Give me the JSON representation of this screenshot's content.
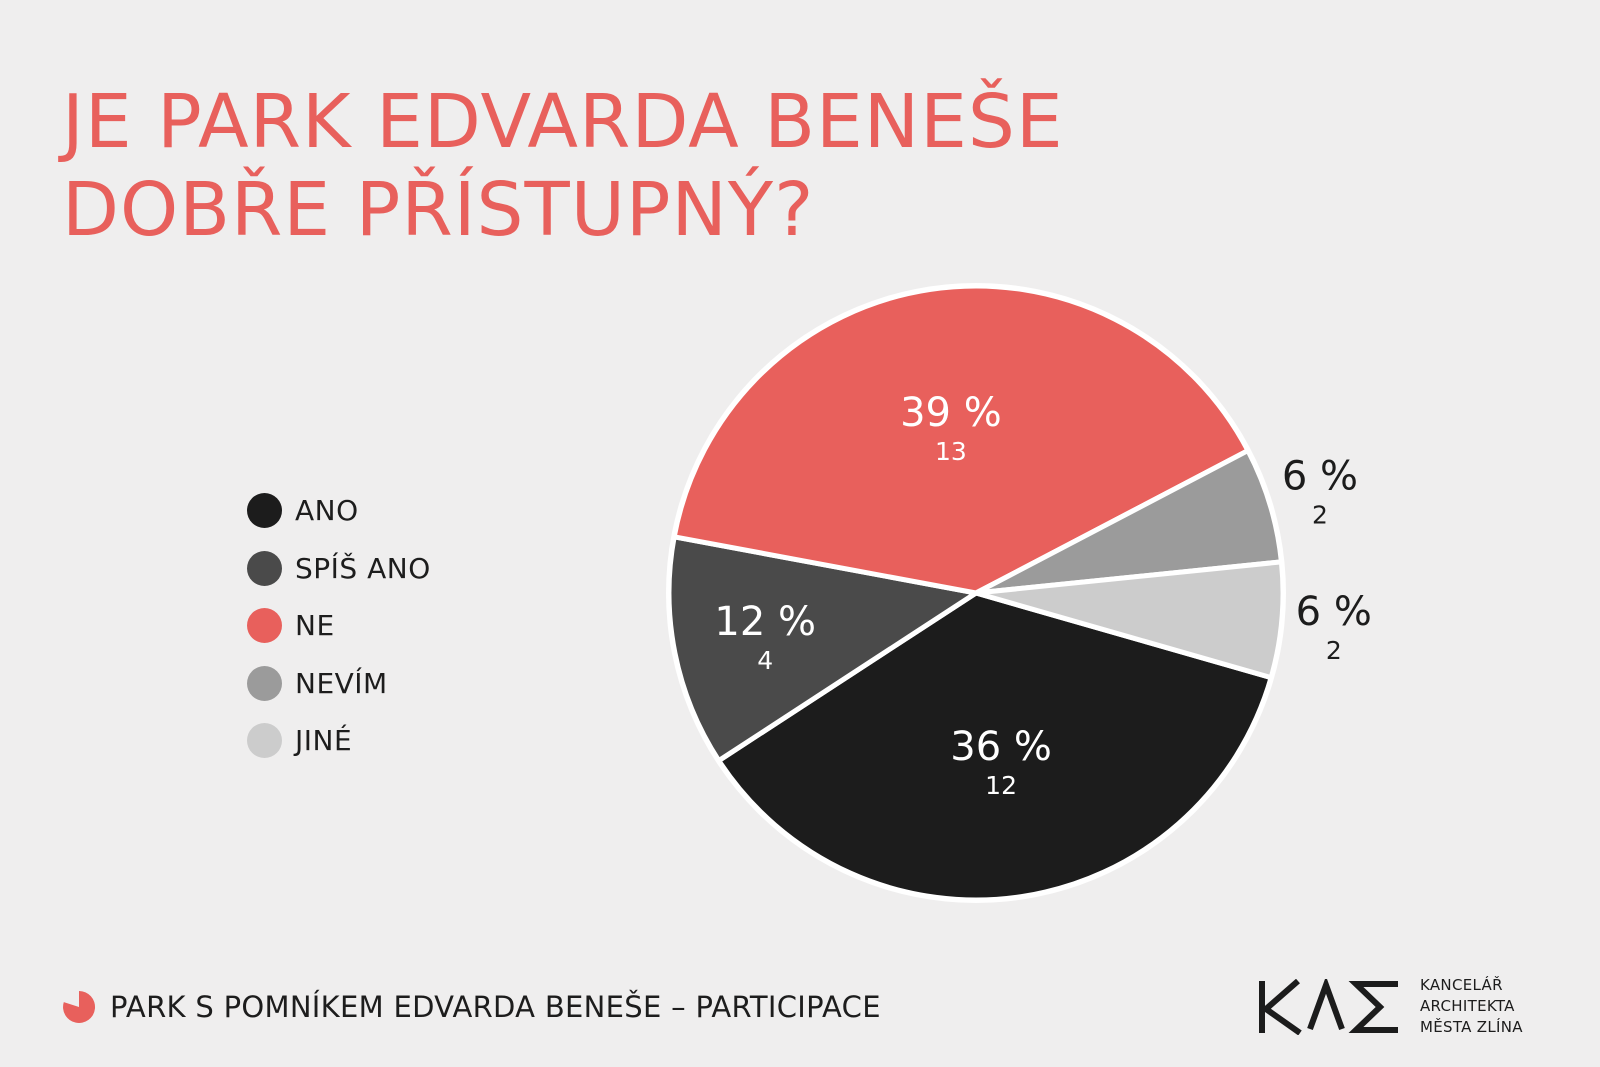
{
  "title": {
    "line1": "JE PARK EDVARDA BENEŠE",
    "line2": "DOBŘE PŘÍSTUPNÝ?"
  },
  "legend": {
    "items": [
      {
        "label": "ANO",
        "color": "#1c1c1c"
      },
      {
        "label": "SPÍŠ ANO",
        "color": "#4a4a4a"
      },
      {
        "label": "NE",
        "color": "#e8605c"
      },
      {
        "label": "NEVÍM",
        "color": "#9b9b9b"
      },
      {
        "label": "JINÉ",
        "color": "#cccccc"
      }
    ]
  },
  "chart_data": {
    "type": "pie",
    "slices": [
      {
        "label": "ANO",
        "percent": 36,
        "percent_label": "36 %",
        "count": 12,
        "color": "#1c1c1c"
      },
      {
        "label": "SPÍŠ ANO",
        "percent": 12,
        "percent_label": "12 %",
        "count": 4,
        "color": "#4a4a4a"
      },
      {
        "label": "NE",
        "percent": 39,
        "percent_label": "39 %",
        "count": 13,
        "color": "#e8605c"
      },
      {
        "label": "NEVÍM",
        "percent": 6,
        "percent_label": "6 %",
        "count": 2,
        "color": "#9b9b9b"
      },
      {
        "label": "JINÉ",
        "percent": 6,
        "percent_label": "6 %",
        "count": 2,
        "color": "#cccccc"
      }
    ]
  },
  "footer": {
    "text": "PARK S POMNÍKEM EDVARDA BENEŠE – PARTICIPACE",
    "icon": "pie-icon",
    "icon_color": "#e8605c"
  },
  "logo": {
    "mark": "KAM",
    "line1": "KANCELÁŘ",
    "line2": "ARCHITEKTA",
    "line3": "MĚSTA ZLÍNA"
  }
}
